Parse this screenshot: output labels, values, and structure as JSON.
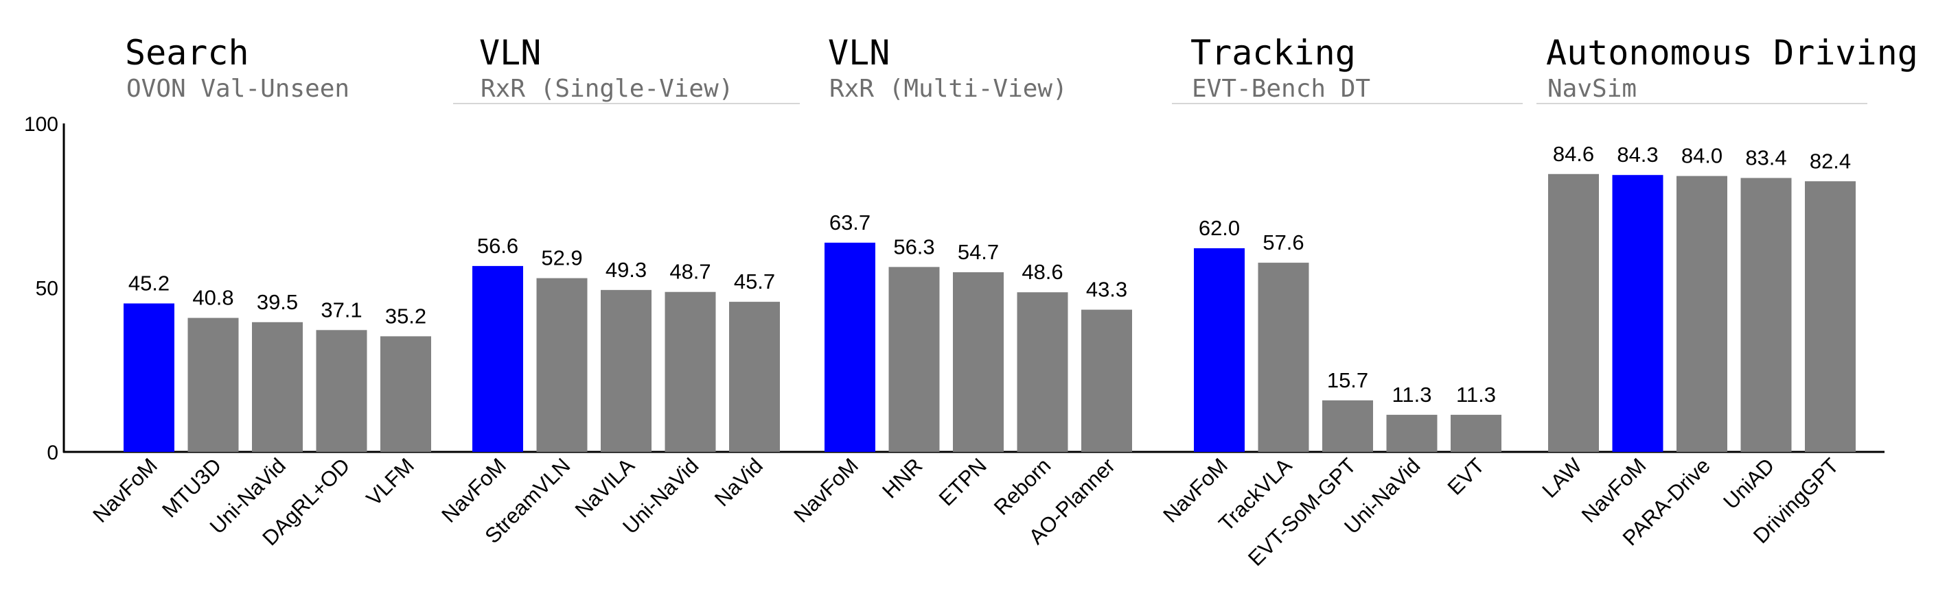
{
  "chart_data": {
    "type": "bar",
    "title": "",
    "xlabel": "",
    "ylabel": "",
    "ylim": [
      0,
      100
    ],
    "yticks": [
      "0",
      "50",
      "100"
    ],
    "colors": {
      "highlight": "#0000ff",
      "default": "#808080",
      "axis": "#000000",
      "subtitle": "#6f6f6f"
    },
    "groups": [
      {
        "title": "Search",
        "subtitle": "OVON Val-Unseen",
        "categories": [
          "NavFoM",
          "MTU3D",
          "Uni-NaVid",
          "DAgRL+OD",
          "VLFM"
        ],
        "values": [
          45.2,
          40.8,
          39.5,
          37.1,
          35.2
        ],
        "labels": [
          "45.2",
          "40.8",
          "39.5",
          "37.1",
          "35.2"
        ],
        "highlight": [
          "NavFoM"
        ]
      },
      {
        "title": "VLN",
        "subtitle": "RxR (Single-View)",
        "categories": [
          "NavFoM",
          "StreamVLN",
          "NaVILA",
          "Uni-NaVid",
          "NaVid"
        ],
        "values": [
          56.6,
          52.9,
          49.3,
          48.7,
          45.7
        ],
        "labels": [
          "56.6",
          "52.9",
          "49.3",
          "48.7",
          "45.7"
        ],
        "highlight": [
          "NavFoM"
        ]
      },
      {
        "title": "VLN",
        "subtitle": "RxR (Multi-View)",
        "categories": [
          "NavFoM",
          "HNR",
          "ETPN",
          "Reborn",
          "AO-Planner"
        ],
        "values": [
          63.7,
          56.3,
          54.7,
          48.6,
          43.3
        ],
        "labels": [
          "63.7",
          "56.3",
          "54.7",
          "48.6",
          "43.3"
        ],
        "highlight": [
          "NavFoM"
        ]
      },
      {
        "title": "Tracking",
        "subtitle": "EVT-Bench DT",
        "categories": [
          "NavFoM",
          "TrackVLA",
          "EVT-SoM-GPT",
          "Uni-NaVid",
          "EVT"
        ],
        "values": [
          62.0,
          57.6,
          15.7,
          11.3,
          11.3
        ],
        "labels": [
          "62.0",
          "57.6",
          "15.7",
          "11.3",
          "11.3"
        ],
        "highlight": [
          "NavFoM"
        ]
      },
      {
        "title": "Autonomous Driving",
        "subtitle": "NavSim",
        "categories": [
          "LAW",
          "NavFoM",
          "PARA-Drive",
          "UniAD",
          "DrivingGPT"
        ],
        "values": [
          84.6,
          84.3,
          84.0,
          83.4,
          82.4
        ],
        "labels": [
          "84.6",
          "84.3",
          "84.0",
          "83.4",
          "82.4"
        ],
        "highlight": [
          "NavFoM"
        ]
      }
    ]
  }
}
